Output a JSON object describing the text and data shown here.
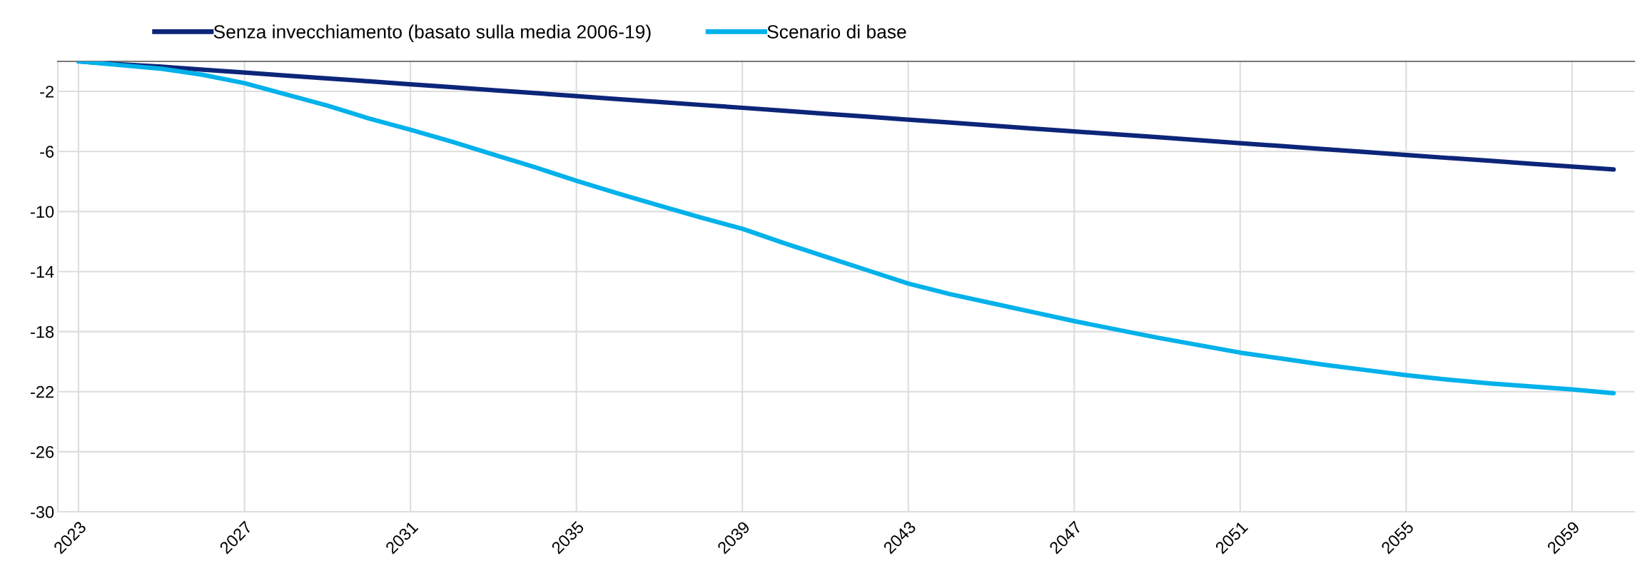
{
  "chart_data": {
    "type": "line",
    "categories": [
      "2023",
      null,
      null,
      null,
      "2027",
      null,
      null,
      null,
      "2031",
      null,
      null,
      null,
      "2035",
      null,
      null,
      null,
      "2039",
      null,
      null,
      null,
      "2043",
      null,
      null,
      null,
      "2047",
      null,
      null,
      null,
      "2051",
      null,
      null,
      null,
      "2055",
      null,
      null,
      null,
      "2059",
      null
    ],
    "ylim": [
      -30,
      0
    ],
    "yticks": [
      -2,
      -6,
      -10,
      -14,
      -18,
      -22,
      -26,
      -30
    ],
    "grid": true,
    "legend": "top",
    "line_style": "solid",
    "marker": "none",
    "series": [
      {
        "name": "Senza invecchiamento (basato sulla media 2006-19)",
        "color": "#0d2579",
        "values": [
          0,
          -0.2,
          -0.35,
          -0.55,
          -0.74,
          -0.94,
          -1.13,
          -1.33,
          -1.53,
          -1.72,
          -1.92,
          -2.11,
          -2.31,
          -2.51,
          -2.7,
          -2.9,
          -3.09,
          -3.29,
          -3.49,
          -3.68,
          -3.88,
          -4.07,
          -4.27,
          -4.47,
          -4.66,
          -4.86,
          -5.05,
          -5.25,
          -5.45,
          -5.64,
          -5.84,
          -6.03,
          -6.23,
          -6.43,
          -6.62,
          -6.82,
          -7.01,
          -7.2
        ]
      },
      {
        "name": "Scenario di base",
        "color": "#00b1ea",
        "values": [
          0,
          -0.25,
          -0.49,
          -0.9,
          -1.45,
          -2.2,
          -2.95,
          -3.8,
          -4.55,
          -5.35,
          -6.2,
          -7.05,
          -7.95,
          -8.8,
          -9.6,
          -10.4,
          -11.15,
          -12.1,
          -13.0,
          -13.9,
          -14.8,
          -15.5,
          -16.1,
          -16.7,
          -17.3,
          -17.85,
          -18.4,
          -18.9,
          -19.4,
          -19.8,
          -20.2,
          -20.55,
          -20.9,
          -21.2,
          -21.45,
          -21.65,
          -21.85,
          -22.1
        ]
      }
    ]
  }
}
